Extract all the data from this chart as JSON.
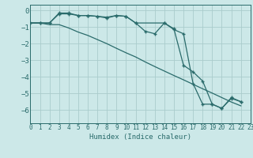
{
  "xlabel": "Humidex (Indice chaleur)",
  "bg_color": "#cce8e8",
  "grid_color": "#aacccc",
  "line_color": "#2a6b6b",
  "xlim": [
    0,
    23
  ],
  "ylim": [
    -6.8,
    0.35
  ],
  "yticks": [
    0,
    -1,
    -2,
    -3,
    -4,
    -5,
    -6
  ],
  "xticks": [
    0,
    1,
    2,
    3,
    4,
    5,
    6,
    7,
    8,
    9,
    10,
    11,
    12,
    13,
    14,
    15,
    16,
    17,
    18,
    19,
    20,
    21,
    22,
    23
  ],
  "line1_x": [
    0,
    1,
    2,
    3,
    4,
    5,
    6,
    7,
    8,
    9,
    10,
    11,
    12,
    13,
    14,
    15,
    16,
    17,
    18,
    19,
    20,
    21,
    22
  ],
  "line1_y": [
    -0.75,
    -0.75,
    -0.75,
    -0.15,
    -0.15,
    -0.3,
    -0.3,
    -0.35,
    -0.45,
    -0.3,
    -0.35,
    -0.75,
    -1.25,
    -1.4,
    -0.75,
    -1.15,
    -1.4,
    -4.4,
    -5.65,
    -5.65,
    -5.9,
    -5.25,
    -5.5
  ],
  "line2_x": [
    0,
    1,
    2,
    3,
    4,
    5,
    6,
    7,
    8,
    9,
    10,
    11,
    14,
    15,
    16,
    17,
    18,
    19,
    20,
    21,
    22
  ],
  "line2_y": [
    -0.75,
    -0.75,
    -0.75,
    -0.2,
    -0.2,
    -0.3,
    -0.3,
    -0.35,
    -0.4,
    -0.3,
    -0.35,
    -0.75,
    -0.75,
    -1.1,
    -3.3,
    -3.7,
    -4.25,
    -5.65,
    -5.9,
    -5.3,
    -5.5
  ],
  "line3_x": [
    0,
    1,
    2,
    3,
    4,
    5,
    6,
    7,
    8,
    9,
    10,
    11,
    12,
    13,
    14,
    15,
    16,
    17,
    18,
    19,
    20,
    21,
    22
  ],
  "line3_y": [
    -0.75,
    -0.75,
    -0.85,
    -0.85,
    -1.05,
    -1.3,
    -1.5,
    -1.75,
    -2.0,
    -2.28,
    -2.55,
    -2.8,
    -3.1,
    -3.38,
    -3.65,
    -3.92,
    -4.18,
    -4.45,
    -4.72,
    -4.98,
    -5.25,
    -5.52,
    -5.75
  ]
}
